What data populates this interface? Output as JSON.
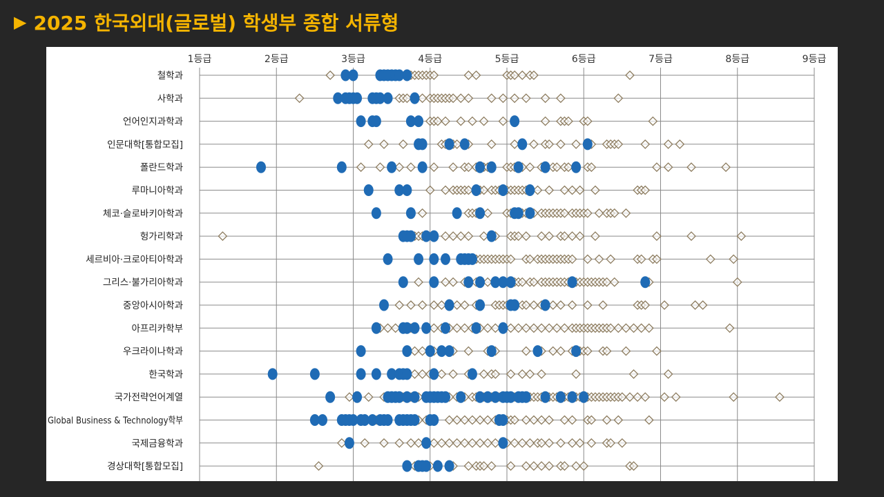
{
  "slide": {
    "arrow_icon": "triangle-right-icon",
    "title": "2025 한국외대(글로벌) 학생부 종합 서류형"
  },
  "colors": {
    "background": "#262626",
    "title": "#f5b400",
    "enrolled_marker": "#1f6bb5",
    "applicant_marker": "#8c7b5e",
    "grid": "#8a8a8a"
  },
  "chart_data": {
    "type": "scatter",
    "title": "",
    "xlabel": "",
    "ylabel": "",
    "x_ticks": [
      "1등급",
      "2등급",
      "3등급",
      "4등급",
      "5등급",
      "6등급",
      "7등급",
      "8등급",
      "9등급"
    ],
    "xlim": [
      1,
      9
    ],
    "grid": true,
    "categories": [
      "철학과",
      "사학과",
      "언어인지과학과",
      "인문대학[통합모집]",
      "폴란드학과",
      "루마니아학과",
      "체코·슬로바키아학과",
      "헝가리학과",
      "세르비아·크로아티아학과",
      "그리스·불가리아학과",
      "중앙아시아학과",
      "아프리카학부",
      "우크라이나학과",
      "한국학과",
      "국가전략언어계열",
      "Global Business & Technology학부",
      "국제금융학과",
      "경상대학[통합모집]"
    ],
    "series": [
      {
        "marker": "diamond-outline",
        "rows": [
          [
            2.7,
            3.7,
            3.75,
            3.8,
            3.85,
            3.9,
            3.95,
            4.0,
            4.05,
            4.5,
            4.6,
            5.0,
            5.05,
            5.1,
            5.2,
            5.3,
            5.35,
            6.6
          ],
          [
            2.3,
            3.3,
            3.6,
            3.65,
            3.7,
            3.8,
            3.9,
            4.0,
            4.05,
            4.1,
            4.15,
            4.2,
            4.25,
            4.3,
            4.4,
            4.5,
            4.8,
            4.95,
            5.1,
            5.25,
            5.5,
            5.7,
            6.45
          ],
          [
            3.3,
            4.0,
            4.05,
            4.1,
            4.2,
            4.4,
            4.55,
            4.7,
            4.95,
            5.5,
            5.7,
            5.75,
            5.8,
            6.0,
            6.05,
            6.9
          ],
          [
            3.2,
            3.4,
            3.65,
            3.85,
            4.15,
            4.2,
            4.3,
            4.35,
            4.5,
            4.8,
            5.1,
            5.35,
            5.5,
            5.55,
            5.7,
            5.9,
            6.1,
            6.3,
            6.35,
            6.4,
            6.45,
            6.8,
            7.1,
            7.25
          ],
          [
            2.85,
            3.1,
            3.35,
            3.6,
            3.75,
            4.05,
            4.3,
            4.45,
            4.5,
            4.6,
            4.7,
            4.75,
            5.0,
            5.05,
            5.1,
            5.2,
            5.3,
            5.45,
            5.6,
            5.65,
            5.75,
            5.8,
            5.9,
            6.05,
            6.1,
            6.95,
            7.1,
            7.4,
            7.85
          ],
          [
            3.7,
            4.0,
            4.2,
            4.3,
            4.35,
            4.4,
            4.45,
            4.5,
            4.6,
            4.65,
            4.7,
            4.8,
            4.85,
            4.9,
            5.0,
            5.05,
            5.1,
            5.15,
            5.2,
            5.25,
            5.3,
            5.4,
            5.55,
            5.75,
            5.85,
            5.95,
            6.15,
            6.7,
            6.75,
            6.8
          ],
          [
            3.9,
            4.5,
            4.55,
            4.6,
            4.65,
            4.75,
            5.0,
            5.05,
            5.1,
            5.15,
            5.2,
            5.25,
            5.3,
            5.35,
            5.45,
            5.5,
            5.55,
            5.6,
            5.65,
            5.7,
            5.75,
            5.85,
            5.9,
            5.95,
            6.0,
            6.05,
            6.2,
            6.3,
            6.35,
            6.4,
            6.55
          ],
          [
            1.3,
            3.75,
            3.8,
            3.85,
            3.9,
            3.95,
            4.2,
            4.3,
            4.4,
            4.5,
            4.7,
            4.85,
            5.05,
            5.1,
            5.15,
            5.25,
            5.45,
            5.55,
            5.7,
            5.75,
            5.85,
            5.95,
            6.15,
            6.95,
            7.4,
            8.05
          ],
          [
            3.85,
            4.5,
            4.55,
            4.6,
            4.65,
            4.7,
            4.75,
            4.8,
            4.85,
            4.9,
            4.95,
            5.0,
            5.05,
            5.25,
            5.3,
            5.4,
            5.45,
            5.5,
            5.55,
            5.6,
            5.65,
            5.7,
            5.75,
            5.8,
            5.85,
            6.05,
            6.2,
            6.35,
            6.7,
            6.75,
            6.9,
            6.95,
            7.65,
            7.95
          ],
          [
            3.85,
            4.2,
            4.3,
            4.45,
            4.6,
            4.75,
            4.85,
            4.95,
            5.05,
            5.1,
            5.15,
            5.2,
            5.3,
            5.35,
            5.45,
            5.5,
            5.55,
            5.6,
            5.65,
            5.7,
            5.75,
            5.8,
            5.85,
            5.9,
            5.95,
            6.0,
            6.05,
            6.1,
            6.15,
            6.2,
            6.25,
            6.3,
            6.4,
            6.85,
            8.0
          ],
          [
            3.6,
            3.75,
            3.9,
            4.05,
            4.15,
            4.25,
            4.35,
            4.45,
            4.6,
            4.85,
            4.9,
            4.95,
            5.0,
            5.1,
            5.2,
            5.25,
            5.35,
            5.45,
            5.6,
            5.7,
            5.85,
            6.05,
            6.25,
            6.7,
            6.75,
            6.8,
            7.05,
            7.45,
            7.55
          ],
          [
            3.35,
            3.45,
            3.55,
            3.65,
            3.75,
            4.05,
            4.15,
            4.25,
            4.35,
            4.45,
            4.55,
            4.65,
            4.75,
            4.85,
            4.95,
            5.05,
            5.15,
            5.25,
            5.35,
            5.45,
            5.55,
            5.65,
            5.75,
            5.85,
            5.9,
            5.95,
            6.0,
            6.05,
            6.1,
            6.15,
            6.2,
            6.25,
            6.3,
            6.35,
            6.45,
            6.55,
            6.65,
            6.75,
            6.85,
            7.9
          ],
          [
            3.7,
            3.8,
            3.9,
            4.05,
            4.3,
            4.5,
            4.75,
            4.8,
            4.85,
            5.25,
            5.45,
            5.6,
            5.7,
            5.85,
            5.95,
            6.0,
            6.05,
            6.25,
            6.3,
            6.55,
            6.95
          ],
          [
            3.8,
            3.9,
            4.0,
            4.15,
            4.3,
            4.5,
            4.7,
            4.8,
            4.85,
            5.05,
            5.2,
            5.3,
            5.45,
            5.9,
            6.65,
            7.1
          ],
          [
            2.95,
            3.2,
            3.4,
            3.55,
            3.65,
            3.75,
            3.85,
            3.95,
            4.05,
            4.15,
            4.25,
            4.35,
            4.45,
            4.55,
            4.6,
            4.65,
            4.7,
            4.75,
            4.8,
            4.85,
            4.9,
            4.95,
            5.0,
            5.05,
            5.1,
            5.15,
            5.2,
            5.25,
            5.3,
            5.35,
            5.4,
            5.45,
            5.5,
            5.55,
            5.6,
            5.65,
            5.7,
            5.75,
            5.8,
            5.85,
            5.9,
            5.95,
            6.0,
            6.05,
            6.1,
            6.15,
            6.2,
            6.25,
            6.3,
            6.35,
            6.4,
            6.45,
            6.5,
            6.6,
            6.7,
            6.8,
            7.05,
            7.2,
            7.95,
            8.55
          ],
          [
            2.9,
            3.3,
            3.6,
            3.75,
            3.85,
            3.95,
            4.05,
            4.25,
            4.35,
            4.45,
            4.55,
            4.65,
            4.75,
            4.85,
            4.95,
            5.0,
            5.05,
            5.1,
            5.25,
            5.35,
            5.45,
            5.55,
            5.75,
            5.85,
            6.05,
            6.1,
            6.3,
            6.45,
            6.85
          ],
          [
            2.85,
            3.15,
            3.4,
            3.6,
            3.75,
            3.85,
            3.95,
            4.05,
            4.15,
            4.25,
            4.35,
            4.45,
            4.55,
            4.65,
            4.75,
            4.85,
            5.0,
            5.1,
            5.2,
            5.3,
            5.4,
            5.45,
            5.55,
            5.7,
            5.85,
            5.95,
            6.1,
            6.3,
            6.35,
            6.5
          ],
          [
            2.55,
            3.7,
            3.8,
            3.9,
            4.0,
            4.1,
            4.3,
            4.5,
            4.6,
            4.65,
            4.7,
            4.8,
            5.05,
            5.25,
            5.35,
            5.45,
            5.55,
            5.7,
            5.75,
            5.9,
            6.0,
            6.6,
            6.65
          ]
        ]
      },
      {
        "marker": "filled-circle",
        "rows": [
          [
            2.9,
            3.0,
            3.35,
            3.4,
            3.45,
            3.5,
            3.55,
            3.6,
            3.7
          ],
          [
            2.8,
            2.9,
            2.95,
            3.0,
            3.05,
            3.25,
            3.3,
            3.35,
            3.45,
            3.8
          ],
          [
            3.1,
            3.25,
            3.3,
            3.75,
            3.85,
            5.1
          ],
          [
            3.85,
            3.9,
            4.25,
            4.45,
            5.2,
            6.05
          ],
          [
            1.8,
            2.85,
            3.5,
            3.9,
            4.65,
            4.8,
            5.15,
            5.5,
            5.9
          ],
          [
            3.2,
            3.6,
            3.7,
            4.6,
            4.95,
            5.3
          ],
          [
            3.3,
            3.75,
            4.35,
            4.65,
            5.1,
            5.15,
            5.3
          ],
          [
            3.65,
            3.7,
            3.75,
            3.95,
            4.05,
            4.8
          ],
          [
            3.45,
            3.85,
            4.05,
            4.2,
            4.4,
            4.45,
            4.5,
            4.55
          ],
          [
            3.65,
            4.05,
            4.5,
            4.65,
            4.85,
            4.95,
            5.05,
            5.85,
            6.8
          ],
          [
            3.4,
            4.25,
            4.65,
            5.05,
            5.1,
            5.5
          ],
          [
            3.3,
            3.65,
            3.7,
            3.8,
            3.95,
            4.2,
            4.6,
            4.95
          ],
          [
            3.1,
            3.7,
            4.0,
            4.15,
            4.25,
            4.8,
            5.4,
            5.9
          ],
          [
            1.95,
            2.5,
            3.1,
            3.3,
            3.5,
            3.6,
            3.65,
            3.7,
            4.05,
            4.55
          ],
          [
            2.7,
            3.05,
            3.45,
            3.5,
            3.55,
            3.6,
            3.7,
            3.8,
            3.95,
            4.0,
            4.05,
            4.1,
            4.15,
            4.2,
            4.4,
            4.65,
            4.75,
            4.85,
            4.95,
            5.0,
            5.05,
            5.15,
            5.2,
            5.25,
            5.5,
            5.7,
            5.85,
            6.0
          ],
          [
            2.5,
            2.6,
            2.85,
            2.9,
            2.95,
            3.0,
            3.1,
            3.15,
            3.25,
            3.35,
            3.4,
            3.45,
            3.6,
            3.65,
            3.7,
            3.75,
            3.8,
            4.0,
            4.05,
            4.9,
            4.95
          ],
          [
            2.95,
            3.95,
            4.95
          ],
          [
            3.7,
            3.85,
            3.9,
            3.95,
            4.1,
            4.25
          ]
        ]
      }
    ]
  }
}
